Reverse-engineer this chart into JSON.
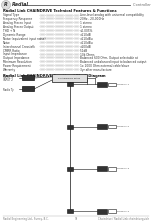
{
  "bg_color": "#ffffff",
  "logo_text": "Radial",
  "page_header_right": "Controller Mark",
  "section1_title": "Radial Link CHAINDRIVE Technical Features & Functions",
  "specs": [
    [
      "Signal Type",
      "Line-level analog with universal compatibility"
    ],
    [
      "Frequency Response",
      "20Hz - 20,000Hz"
    ],
    [
      "Analog Stereo Input",
      "1 stereo"
    ],
    [
      "Analog Stereo Output",
      "1 stereo"
    ],
    [
      "THD + N",
      "<0.005%"
    ],
    [
      "Dynamic Range",
      ">110dB"
    ],
    [
      "Noise (equivalent input noise)",
      ">110dBu"
    ],
    [
      "Noise",
      ">110dBu"
    ],
    [
      "Interchannel Crosstalk",
      ">100dB"
    ],
    [
      "CMRR Ratio",
      "5.1dB"
    ],
    [
      "Input Impedance",
      "10k Ohms"
    ],
    [
      "Output Impedance",
      "Balanced 600 Ohm, Output selectable at"
    ],
    [
      "Minimum Resolution",
      "Balanced unbalanced input to balanced output"
    ],
    [
      "Power Requirement",
      "1x 1000 Ohm external cable/slave"
    ],
    [
      "Warranty",
      "3yr after manufacture"
    ]
  ],
  "section2_title": "Radial Link CHAINDRIVE Functional Block Diagram",
  "footer_left": "Radial Engineering Ltd., Surrey, B.C.",
  "footer_center": "9",
  "footer_right": "Chaindrive / Radial Link chaindriveguide",
  "output_labels": [
    "OUTPUT 1",
    "OUTPUT 2",
    "OUTPUT 3",
    "OUTPUT 4"
  ]
}
